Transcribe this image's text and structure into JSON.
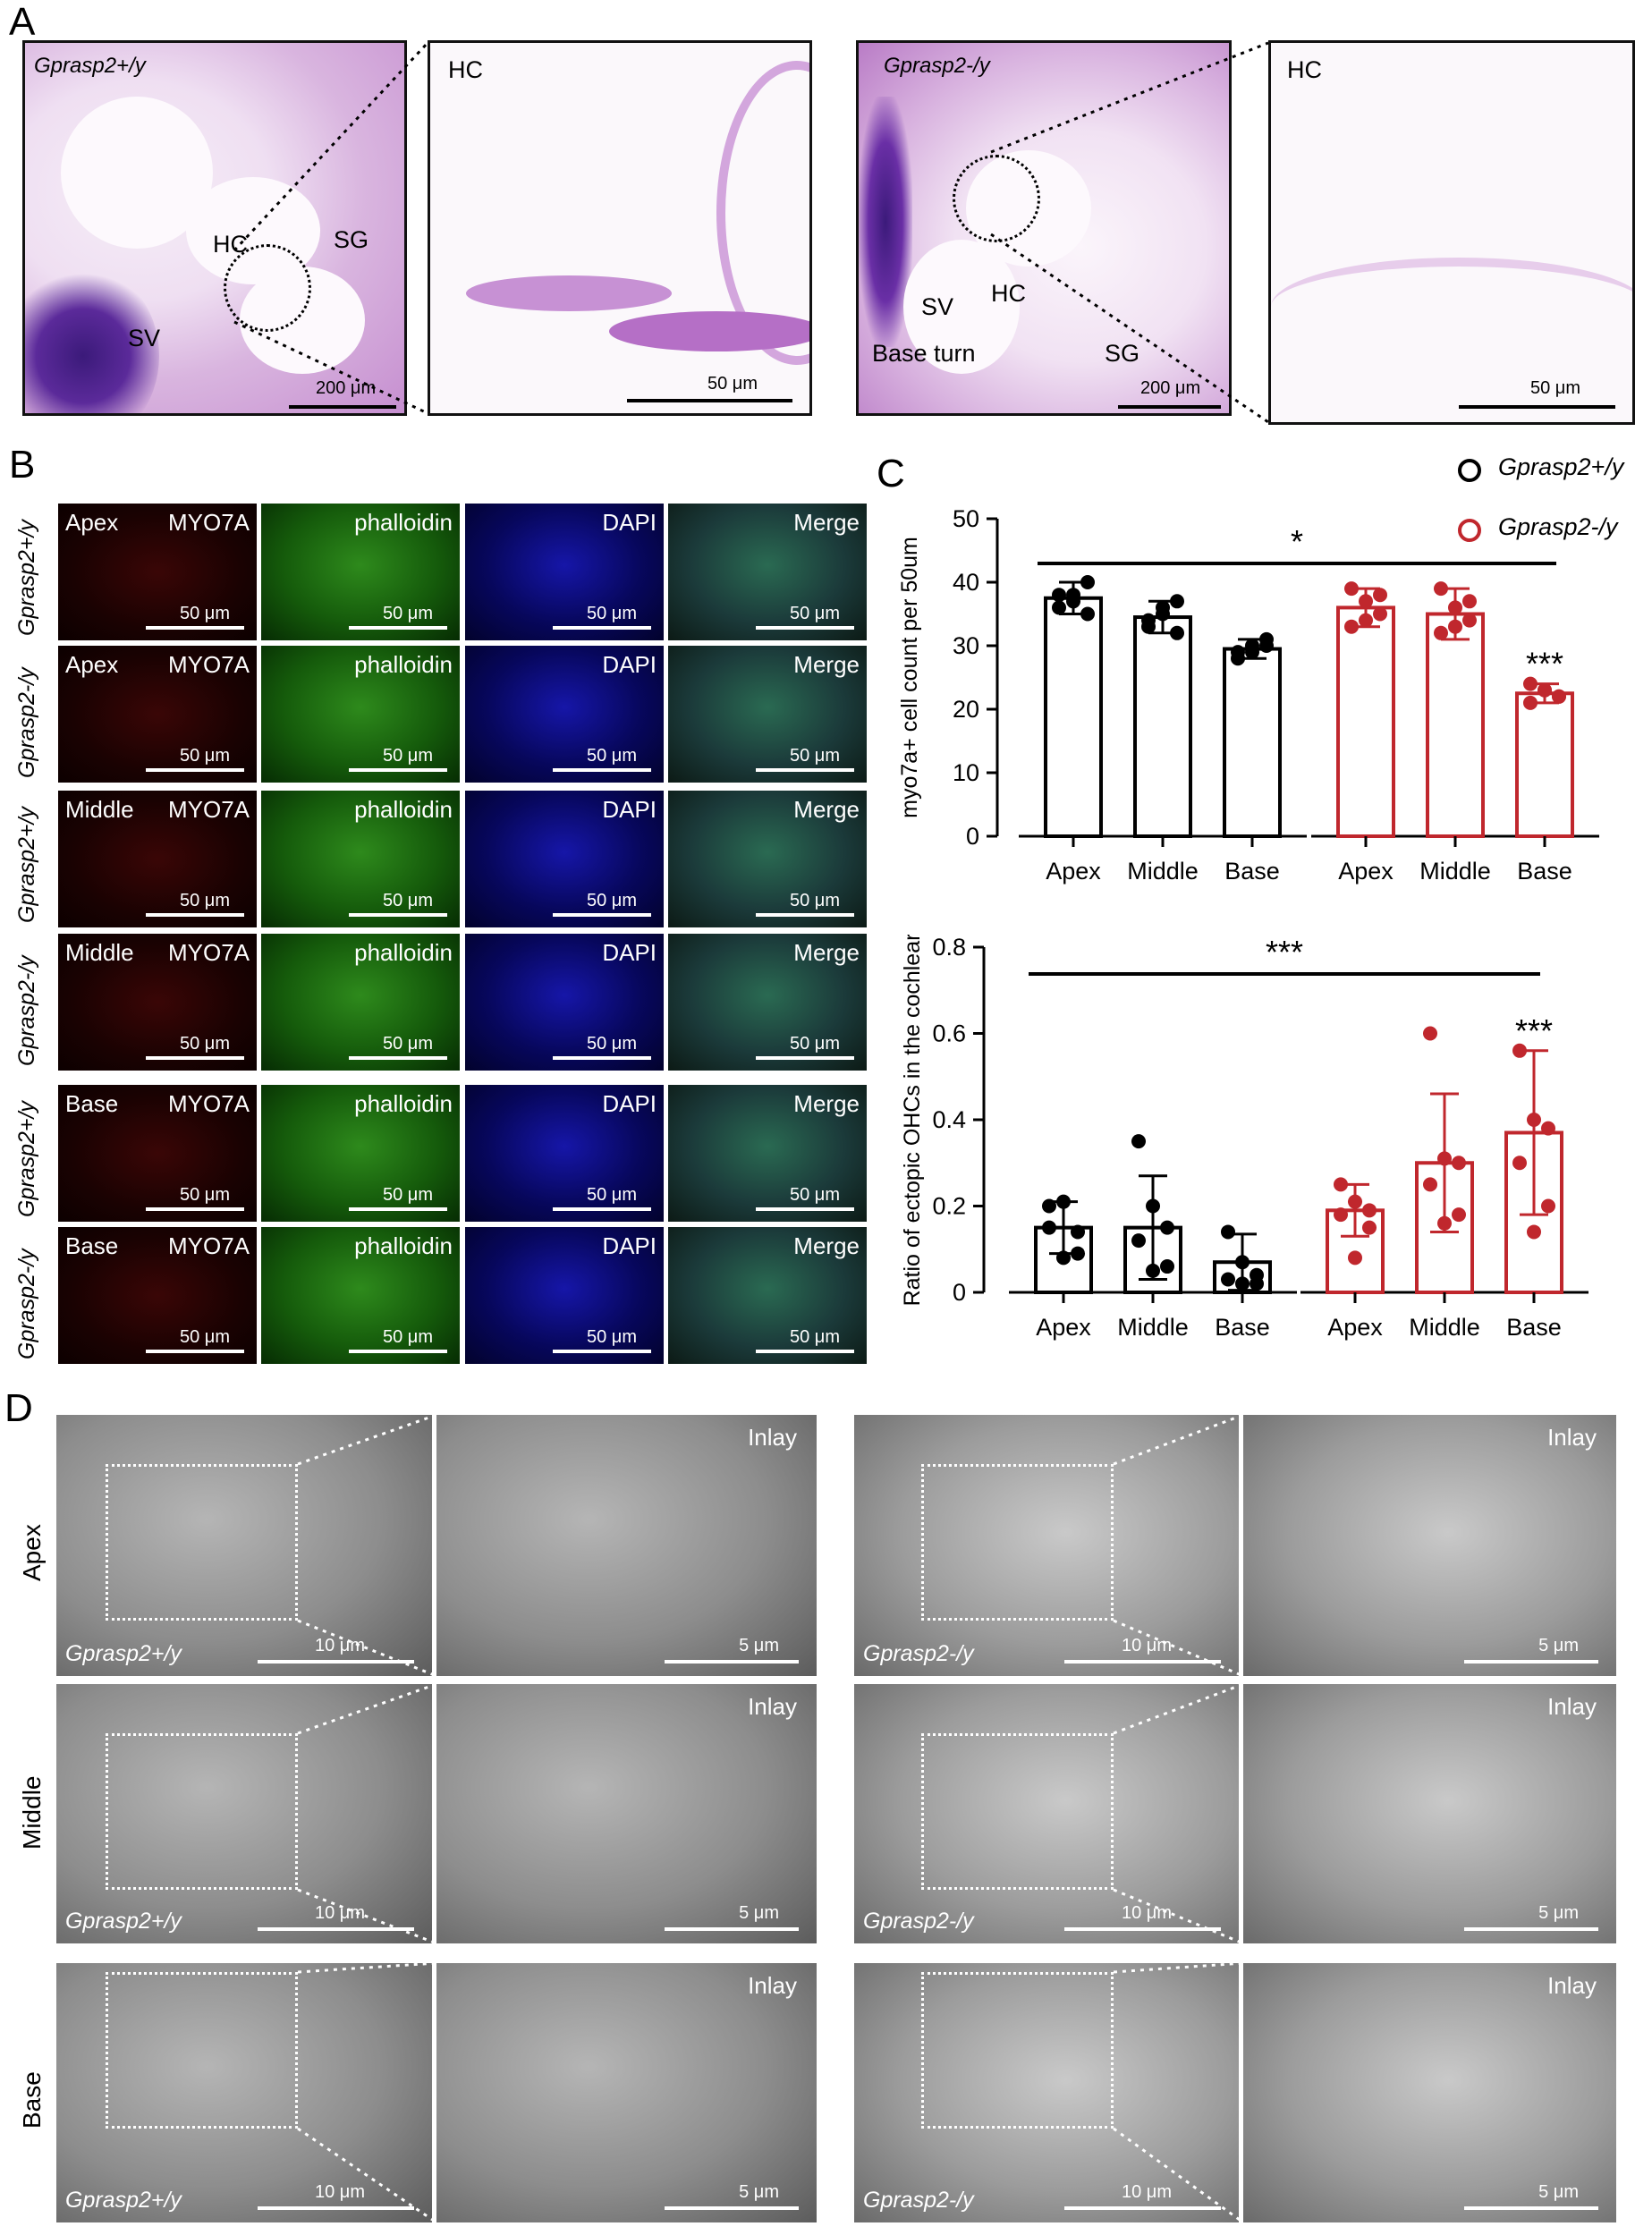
{
  "panel_labels": {
    "a": "A",
    "b": "B",
    "c": "C",
    "d": "D"
  },
  "panel_a": {
    "wt_genotype": "Gprasp2+/y",
    "ko_genotype": "Gprasp2-/y",
    "hc": "HC",
    "sg": "SG",
    "sv": "SV",
    "base_turn": "Base turn",
    "scale_200": "200 μm",
    "scale_50": "50 μm"
  },
  "panel_b": {
    "columns": [
      "MYO7A",
      "phalloidin",
      "DAPI",
      "Merge"
    ],
    "rows": [
      {
        "region": "Apex",
        "genotype": "Gprasp2+/y"
      },
      {
        "region": "Apex",
        "genotype": "Gprasp2-/y"
      },
      {
        "region": "Middle",
        "genotype": "Gprasp2+/y"
      },
      {
        "region": "Middle",
        "genotype": "Gprasp2-/y"
      },
      {
        "region": "Base",
        "genotype": "Gprasp2+/y"
      },
      {
        "region": "Base",
        "genotype": "Gprasp2-/y"
      }
    ],
    "scale": "50 μm"
  },
  "panel_c": {
    "legend": [
      {
        "name": "Gprasp2+/y",
        "color": "#000000"
      },
      {
        "name": "Gprasp2-/y",
        "color": "#c0272d"
      }
    ]
  },
  "chart_data": [
    {
      "type": "bar",
      "ylabel": "myo7a+ cell count per 50um",
      "ylim": [
        0,
        50
      ],
      "yticks": [
        0,
        10,
        20,
        30,
        40,
        50
      ],
      "categories": [
        "Apex",
        "Middle",
        "Base"
      ],
      "series": [
        {
          "name": "Gprasp2+/y",
          "color": "#000000",
          "values": [
            37.5,
            34.5,
            29.5
          ],
          "errors": [
            2.5,
            2.5,
            1.5
          ],
          "points": [
            [
              36,
              38,
              40,
              38,
              35,
              37
            ],
            [
              33,
              35,
              37,
              34,
              32,
              36
            ],
            [
              29,
              30,
              31,
              28,
              30,
              29
            ]
          ]
        },
        {
          "name": "Gprasp2-/y",
          "color": "#c0272d",
          "values": [
            36,
            35,
            22.5
          ],
          "errors": [
            3,
            4,
            1.5
          ],
          "points": [
            [
              39,
              37,
              35,
              33,
              38,
              34
            ],
            [
              39,
              36,
              34,
              32,
              37,
              33
            ],
            [
              24,
              23,
              22,
              21,
              22,
              23
            ]
          ]
        }
      ],
      "annotations": [
        {
          "text": "*",
          "between": "all groups"
        },
        {
          "text": "***",
          "series": "Gprasp2-/y",
          "category": "Base"
        }
      ]
    },
    {
      "type": "bar",
      "ylabel": "Ratio of ectopic OHCs in the cochlear",
      "ylim": [
        0,
        0.8
      ],
      "yticks": [
        0,
        0.2,
        0.4,
        0.6,
        0.8
      ],
      "categories": [
        "Apex",
        "Middle",
        "Base"
      ],
      "series": [
        {
          "name": "Gprasp2+/y",
          "color": "#000000",
          "values": [
            0.15,
            0.15,
            0.07
          ],
          "errors": [
            0.06,
            0.12,
            0.065
          ],
          "points": [
            [
              0.2,
              0.21,
              0.14,
              0.15,
              0.09,
              0.08
            ],
            [
              0.35,
              0.2,
              0.15,
              0.12,
              0.06,
              0.05
            ],
            [
              0.14,
              0.07,
              0.04,
              0.03,
              0.02,
              0.02
            ]
          ]
        },
        {
          "name": "Gprasp2-/y",
          "color": "#c0272d",
          "values": [
            0.19,
            0.3,
            0.37
          ],
          "errors": [
            0.06,
            0.16,
            0.19
          ],
          "points": [
            [
              0.25,
              0.21,
              0.19,
              0.18,
              0.15,
              0.08
            ],
            [
              0.6,
              0.31,
              0.3,
              0.25,
              0.18,
              0.16
            ],
            [
              0.56,
              0.4,
              0.38,
              0.3,
              0.2,
              0.14
            ]
          ]
        }
      ],
      "annotations": [
        {
          "text": "***",
          "between": "all groups"
        },
        {
          "text": "***",
          "series": "Gprasp2-/y",
          "category": "Base"
        }
      ]
    }
  ],
  "panel_d": {
    "rows": [
      "Apex",
      "Middle",
      "Base"
    ],
    "inlay": "Inlay",
    "wt_genotype": "Gprasp2+/y",
    "ko_genotype": "Gprasp2-/y",
    "scale_10": "10 μm",
    "scale_5": "5 μm"
  }
}
